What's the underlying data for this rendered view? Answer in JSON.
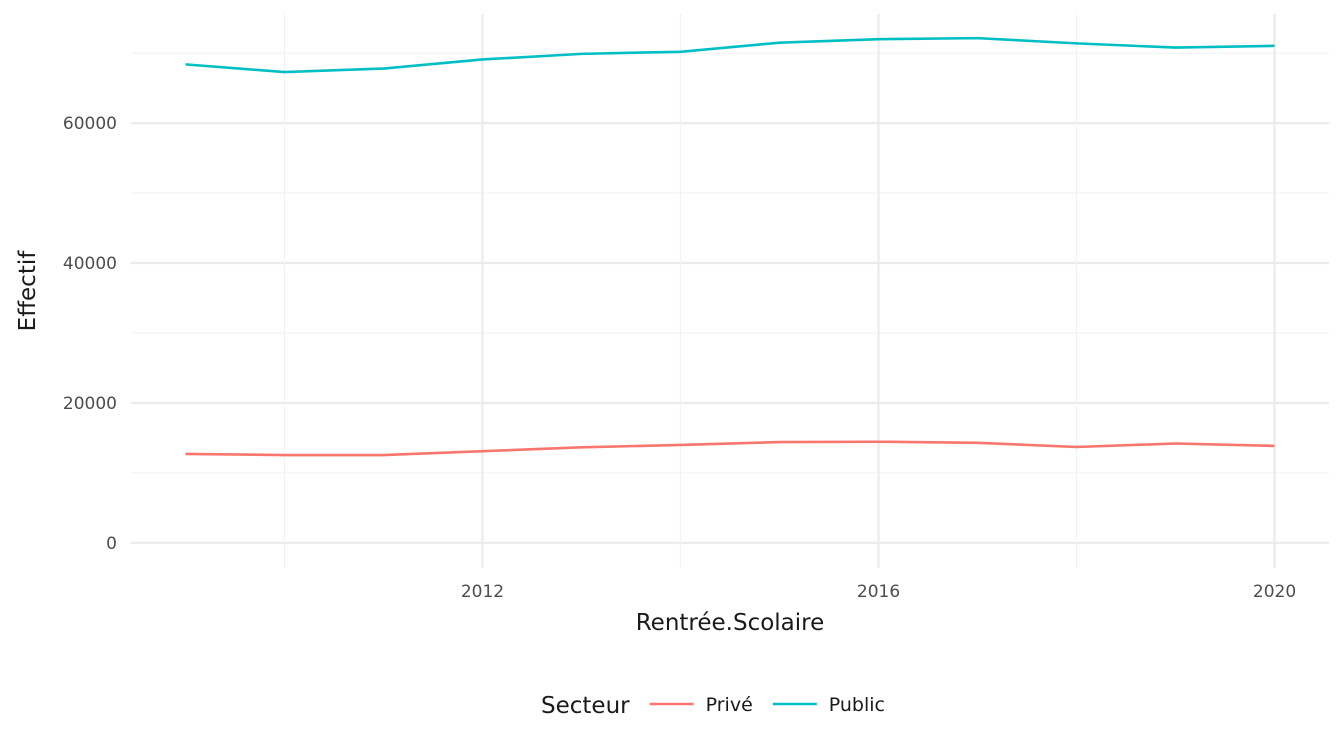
{
  "chart_data": {
    "type": "line",
    "title": "",
    "xlabel": "Rentrée.Scolaire",
    "ylabel": "Effectif",
    "x": [
      2009,
      2010,
      2011,
      2012,
      2013,
      2014,
      2015,
      2016,
      2017,
      2018,
      2019,
      2020
    ],
    "x_ticks": [
      "2012",
      "2016",
      "2020"
    ],
    "x_tick_values": [
      2012,
      2016,
      2020
    ],
    "xlim": [
      2008.45,
      2020.55
    ],
    "y_ticks": [
      "0",
      "20000",
      "40000",
      "60000"
    ],
    "y_tick_values": [
      0,
      20000,
      40000,
      60000
    ],
    "ylim": [
      -3600,
      75600
    ],
    "grid": true,
    "legend_position": "bottom",
    "legend_title": "Secteur",
    "series": [
      {
        "name": "Privé",
        "color": "#F8766D",
        "values": [
          12700,
          12550,
          12550,
          13100,
          13650,
          14000,
          14400,
          14450,
          14300,
          13700,
          14200,
          13850
        ]
      },
      {
        "name": "Public",
        "color": "#00BFC4",
        "values": [
          68400,
          67300,
          67800,
          69100,
          69900,
          70200,
          71500,
          72000,
          72150,
          71400,
          70800,
          71050
        ]
      }
    ]
  }
}
